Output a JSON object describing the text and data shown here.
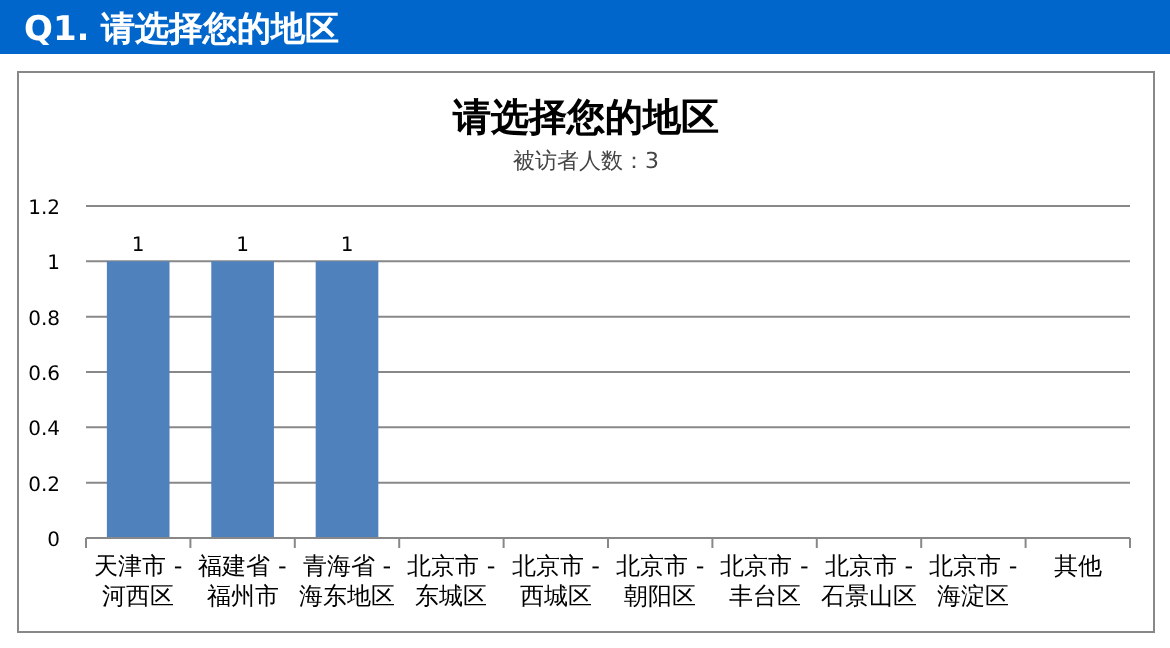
{
  "chart_data": {
    "type": "bar",
    "title": "请选择您的地区",
    "subtitle": "被访者人数：3",
    "annotations": [
      "Q1. 请选择您的地区"
    ],
    "categories": [
      "天津市 -\n河西区",
      "福建省 -\n福州市",
      "青海省 -\n海东地区",
      "北京市 -\n东城区",
      "北京市 -\n西城区",
      "北京市 -\n朝阳区",
      "北京市 -\n丰台区",
      "北京市 -\n石景山区",
      "北京市 -\n海淀区",
      "其他"
    ],
    "values": [
      1,
      1,
      1,
      0,
      0,
      0,
      0,
      0,
      0,
      0
    ],
    "value_labels": [
      "1",
      "1",
      "1",
      null,
      null,
      null,
      null,
      null,
      null,
      null
    ],
    "color": "#4f81bd",
    "ylim": [
      0,
      1.2
    ],
    "yticks": [
      0,
      0.2,
      0.4,
      0.6,
      0.8,
      1,
      1.2
    ],
    "grid": "y"
  }
}
